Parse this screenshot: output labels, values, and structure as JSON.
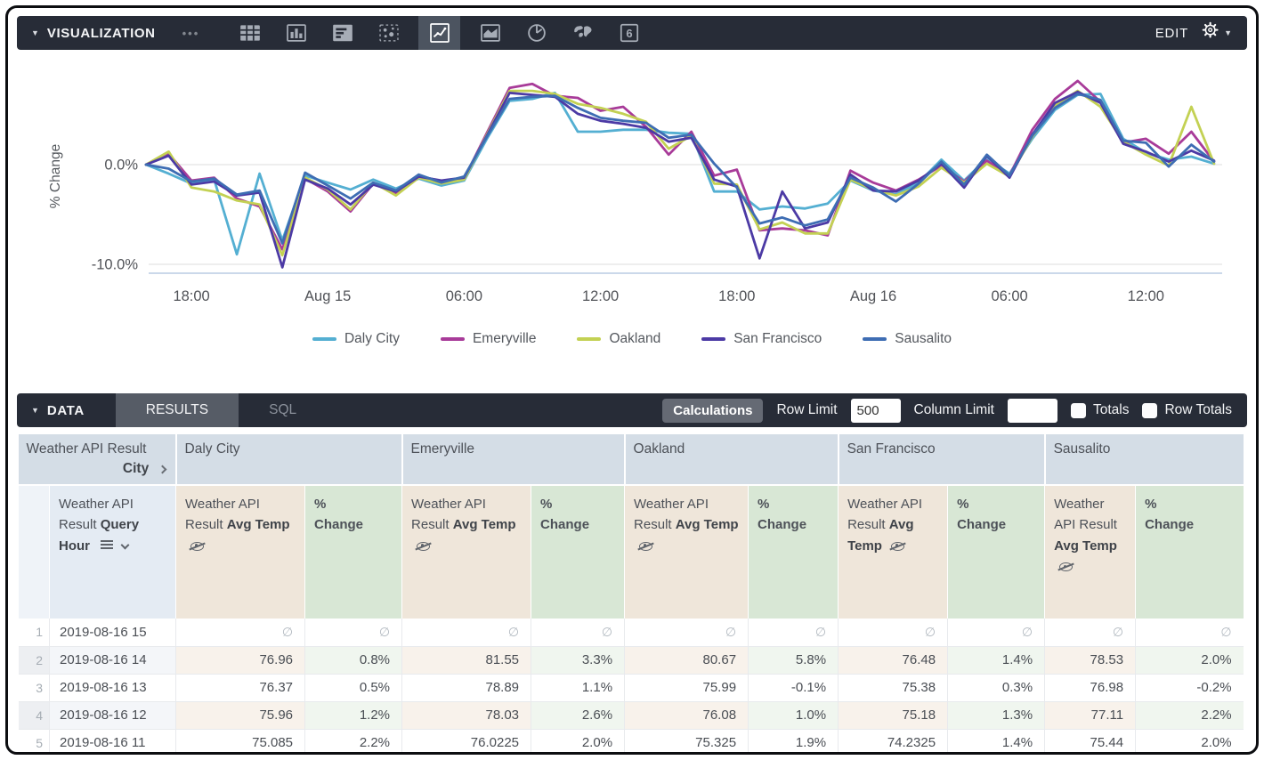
{
  "viz_bar": {
    "title": "VISUALIZATION",
    "edit_label": "EDIT",
    "more_icon": "•••",
    "icons": [
      {
        "name": "table-chart-icon",
        "glyph": "table-chart",
        "selected": false
      },
      {
        "name": "column-chart-icon",
        "glyph": "column-chart",
        "selected": false
      },
      {
        "name": "row-chart-icon",
        "glyph": "row-chart",
        "selected": false
      },
      {
        "name": "scatter-chart-icon",
        "glyph": "scatter-chart",
        "selected": false
      },
      {
        "name": "line-chart-icon",
        "glyph": "line-chart",
        "selected": true
      },
      {
        "name": "area-chart-icon",
        "glyph": "area-chart",
        "selected": false
      },
      {
        "name": "pie-chart-icon",
        "glyph": "pie-chart",
        "selected": false
      },
      {
        "name": "map-chart-icon",
        "glyph": "map-chart",
        "selected": false
      },
      {
        "name": "single-value-icon",
        "glyph": "single-value",
        "selected": false
      }
    ]
  },
  "chart": {
    "y_axis_title": "% Change",
    "y_ticks": [
      {
        "value": 0,
        "label": "0.0%"
      },
      {
        "value": -10,
        "label": "-10.0%"
      }
    ],
    "x_ticks": [
      {
        "hour": 2,
        "label": "18:00"
      },
      {
        "hour": 8,
        "label": "Aug 15"
      },
      {
        "hour": 14,
        "label": "06:00"
      },
      {
        "hour": 20,
        "label": "12:00"
      },
      {
        "hour": 26,
        "label": "18:00"
      },
      {
        "hour": 32,
        "label": "Aug 16"
      },
      {
        "hour": 38,
        "label": "06:00"
      },
      {
        "hour": 44,
        "label": "12:00"
      }
    ]
  },
  "chart_data": {
    "type": "line",
    "title": "",
    "xlabel": "",
    "ylabel": "% Change",
    "ylim": [
      -11.5,
      9.5
    ],
    "x_unit": "hourly points, index 0-47, ticks at hours listed in chart.x_ticks",
    "grid": "horizontal lines at 0% and -10% only",
    "legend_position": "bottom",
    "series": [
      {
        "name": "Daly City",
        "color": "#54afd2",
        "values": [
          0,
          -0.9,
          -1.9,
          -1.5,
          -9.0,
          -0.9,
          -7.6,
          -1.1,
          -1.8,
          -2.5,
          -1.5,
          -2.4,
          -1.4,
          -2.1,
          -1.6,
          2.6,
          6.4,
          6.6,
          7.2,
          3.3,
          3.3,
          3.5,
          3.5,
          3.2,
          3.1,
          -2.7,
          -2.7,
          -4.5,
          -4.2,
          -4.4,
          -3.9,
          -1.6,
          -2.6,
          -3.0,
          -1.8,
          0.5,
          -1.6,
          0.6,
          -0.9,
          2.6,
          5.5,
          7.0,
          7.1,
          2.6,
          1.2,
          0.5,
          0.8,
          0.1
        ]
      },
      {
        "name": "Emeryville",
        "color": "#a83b99",
        "values": [
          0,
          1.1,
          -1.6,
          -1.3,
          -3.4,
          -4.2,
          -8.5,
          -1.4,
          -2.7,
          -4.7,
          -1.9,
          -2.9,
          -1.1,
          -1.7,
          -1.4,
          3.2,
          7.7,
          8.1,
          6.9,
          6.7,
          5.4,
          5.8,
          3.8,
          1.0,
          3.3,
          -1.1,
          -0.5,
          -6.6,
          -6.4,
          -6.6,
          -7.1,
          -0.6,
          -1.8,
          -2.6,
          -1.5,
          -0.1,
          -1.7,
          0.4,
          -1.1,
          3.5,
          6.6,
          8.4,
          6.3,
          2.2,
          2.6,
          1.1,
          3.3,
          0.3
        ]
      },
      {
        "name": "Oakland",
        "color": "#c3d153",
        "values": [
          0,
          1.3,
          -2.3,
          -2.7,
          -3.6,
          -4.0,
          -9.1,
          -1.3,
          -2.5,
          -4.5,
          -1.8,
          -3.1,
          -1.3,
          -1.9,
          -1.5,
          3.0,
          7.4,
          7.4,
          7.1,
          6.1,
          5.7,
          5.1,
          4.3,
          1.6,
          2.9,
          -1.9,
          -2.0,
          -6.5,
          -5.8,
          -6.9,
          -6.9,
          -1.5,
          -2.5,
          -3.1,
          -2.2,
          -0.3,
          -1.8,
          0.1,
          -1.2,
          2.8,
          5.9,
          7.4,
          5.8,
          2.3,
          1.0,
          -0.1,
          5.8,
          0.1
        ]
      },
      {
        "name": "San Francisco",
        "color": "#4c3aa5",
        "values": [
          0,
          0.9,
          -2.0,
          -1.7,
          -3.1,
          -2.8,
          -10.3,
          -1.5,
          -2.4,
          -4.0,
          -2.0,
          -2.7,
          -1.2,
          -1.6,
          -1.3,
          2.9,
          7.2,
          7.0,
          6.8,
          5.1,
          4.4,
          4.1,
          3.7,
          2.3,
          2.7,
          -1.5,
          -2.2,
          -9.4,
          -2.7,
          -6.4,
          -5.8,
          -1.0,
          -2.6,
          -2.7,
          -1.6,
          0.1,
          -2.3,
          0.9,
          -1.3,
          3.0,
          6.2,
          7.3,
          6.2,
          2.1,
          1.3,
          0.3,
          1.4,
          0.4
        ]
      },
      {
        "name": "Sausalito",
        "color": "#3e6db3",
        "values": [
          0,
          -0.4,
          -1.7,
          -1.4,
          -3.0,
          -2.6,
          -7.9,
          -0.8,
          -2.1,
          -3.4,
          -1.8,
          -2.6,
          -1.0,
          -1.8,
          -1.2,
          2.8,
          6.6,
          6.8,
          6.9,
          5.7,
          4.7,
          4.4,
          4.2,
          2.7,
          3.0,
          0.1,
          -2.3,
          -5.9,
          -5.3,
          -6.1,
          -5.5,
          -1.3,
          -2.3,
          -3.7,
          -1.9,
          0.3,
          -2.0,
          1.0,
          -1.1,
          2.9,
          5.7,
          7.1,
          6.5,
          2.4,
          2.2,
          -0.2,
          2.0,
          0.3
        ]
      }
    ]
  },
  "data_bar": {
    "title": "DATA",
    "tabs": [
      {
        "label": "RESULTS",
        "active": true
      },
      {
        "label": "SQL",
        "active": false
      }
    ],
    "calculations_label": "Calculations",
    "row_limit_label": "Row Limit",
    "row_limit_value": "500",
    "column_limit_label": "Column Limit",
    "column_limit_value": "",
    "totals_label": "Totals",
    "totals_checked": false,
    "row_totals_label": "Row Totals",
    "row_totals_checked": false
  },
  "table": {
    "pivot_field_prefix": "Weather API Result",
    "pivot_field_bold": "City",
    "cities": [
      "Daly City",
      "Emeryville",
      "Oakland",
      "San Francisco",
      "Sausalito"
    ],
    "dimension_prefix": "Weather API Result",
    "dimension_bold": "Query Hour",
    "measure_prefix": "Weather API Result",
    "measure_bold": "Avg Temp",
    "calc_label": "% Change",
    "null_symbol": "∅",
    "rows": [
      {
        "num": "1",
        "hour": "2019-08-16 15",
        "values": [
          "∅",
          "∅",
          "∅",
          "∅",
          "∅",
          "∅",
          "∅",
          "∅",
          "∅",
          "∅"
        ]
      },
      {
        "num": "2",
        "hour": "2019-08-16 14",
        "values": [
          "76.96",
          "0.8%",
          "81.55",
          "3.3%",
          "80.67",
          "5.8%",
          "76.48",
          "1.4%",
          "78.53",
          "2.0%"
        ]
      },
      {
        "num": "3",
        "hour": "2019-08-16 13",
        "values": [
          "76.37",
          "0.5%",
          "78.89",
          "1.1%",
          "75.99",
          "-0.1%",
          "75.38",
          "0.3%",
          "76.98",
          "-0.2%"
        ]
      },
      {
        "num": "4",
        "hour": "2019-08-16 12",
        "values": [
          "75.96",
          "1.2%",
          "78.03",
          "2.6%",
          "76.08",
          "1.0%",
          "75.18",
          "1.3%",
          "77.11",
          "2.2%"
        ]
      },
      {
        "num": "5",
        "hour": "2019-08-16 11",
        "values": [
          "75.085",
          "2.2%",
          "76.0225",
          "2.0%",
          "75.325",
          "1.9%",
          "74.2325",
          "1.4%",
          "75.44",
          "2.0%"
        ]
      }
    ]
  }
}
